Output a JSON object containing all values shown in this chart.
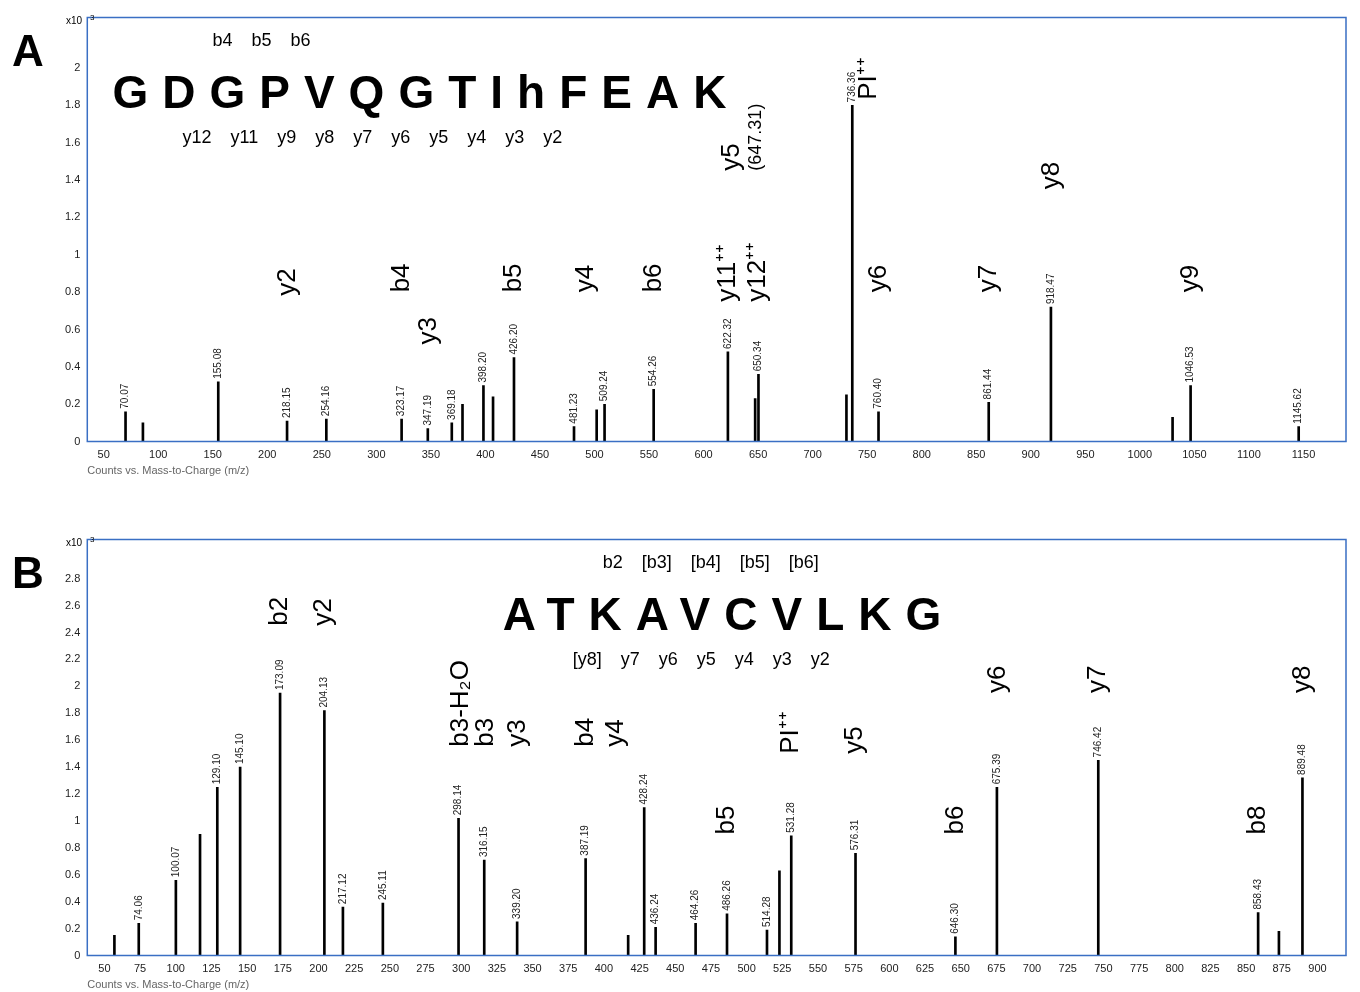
{
  "chart_data": [
    {
      "type": "bar",
      "title": "A",
      "xlabel": "Counts vs. Mass-to-Charge (m/z)",
      "ylabel": "x10$^{3}$",
      "xlim": [
        35,
        1189
      ],
      "xticks": [
        50,
        100,
        150,
        200,
        250,
        300,
        350,
        400,
        450,
        500,
        550,
        600,
        650,
        700,
        750,
        800,
        850,
        900,
        950,
        1000,
        1050,
        1100,
        1150
      ],
      "ylim": [
        0,
        2.27
      ],
      "yticks": [
        0,
        0.2,
        0.4,
        0.6,
        0.8,
        1,
        1.2,
        1.4,
        1.6,
        1.8,
        2
      ],
      "x": [
        70.07,
        86,
        155.08,
        218.15,
        254.16,
        323.17,
        347.19,
        369.18,
        379,
        398.2,
        407,
        426.2,
        481.23,
        502,
        509.24,
        554.26,
        622.32,
        647.31,
        650.34,
        731,
        736.36,
        760.4,
        861.44,
        918.47,
        1030,
        1046.53,
        1145.62
      ],
      "series": [
        {
          "color": "#000000",
          "values": [
            0.16,
            0.1,
            0.32,
            0.11,
            0.12,
            0.12,
            0.07,
            0.1,
            0.2,
            0.3,
            0.24,
            0.45,
            0.08,
            0.17,
            0.2,
            0.28,
            0.48,
            0.23,
            0.36,
            0.25,
            1.8,
            0.16,
            0.21,
            0.72,
            0.13,
            0.3,
            0.08
          ]
        }
      ],
      "annotations": [
        "b4 b5 b6",
        "GDGPVQGTIhFEAK",
        "y12 y11 y9 y8 y7 y6 y5 y4 y3 y2",
        "y2",
        "b4",
        "y3",
        "b5",
        "y4",
        "b6",
        "y11⁺⁺",
        "y12⁺⁺",
        "y5",
        "(647.31)",
        "PI⁺⁺",
        "y6",
        "y7",
        "y8",
        "y9",
        {
          "text": "70.07",
          "x": 70.07,
          "y": 0.16
        },
        {
          "text": "155.08",
          "x": 155.08,
          "y": 0.32
        },
        {
          "text": "218.15",
          "x": 218.15,
          "y": 0.11
        },
        {
          "text": "254.16",
          "x": 254.16,
          "y": 0.12
        },
        {
          "text": "323.17",
          "x": 323.17,
          "y": 0.12
        },
        {
          "text": "347.19",
          "x": 347.19,
          "y": 0.07
        },
        {
          "text": "369.18",
          "x": 369.18,
          "y": 0.1
        },
        {
          "text": "398.20",
          "x": 398.2,
          "y": 0.3
        },
        {
          "text": "426.20",
          "x": 426.2,
          "y": 0.45
        },
        {
          "text": "481.23",
          "x": 481.23,
          "y": 0.08
        },
        {
          "text": "509.24",
          "x": 509.24,
          "y": 0.2
        },
        {
          "text": "554.26",
          "x": 554.26,
          "y": 0.28
        },
        {
          "text": "622.32",
          "x": 622.32,
          "y": 0.48
        },
        {
          "text": "650.34",
          "x": 650.34,
          "y": 0.36
        },
        {
          "text": "736.36",
          "x": 736.36,
          "y": 1.8
        },
        {
          "text": "760.40",
          "x": 760.4,
          "y": 0.16
        },
        {
          "text": "861.44",
          "x": 861.44,
          "y": 0.21
        },
        {
          "text": "918.47",
          "x": 918.47,
          "y": 0.72
        },
        {
          "text": "1046.53",
          "x": 1046.53,
          "y": 0.3
        },
        {
          "text": "1145.62",
          "x": 1145.62,
          "y": 0.08
        }
      ]
    },
    {
      "type": "bar",
      "title": "B",
      "xlabel": "Counts vs. Mass-to-Charge (m/z)",
      "ylabel": "x10$^{3}$",
      "xlim": [
        38,
        920
      ],
      "xticks": [
        50,
        75,
        100,
        125,
        150,
        175,
        200,
        225,
        250,
        275,
        300,
        325,
        350,
        375,
        400,
        425,
        450,
        475,
        500,
        525,
        550,
        575,
        600,
        625,
        650,
        675,
        700,
        725,
        750,
        775,
        800,
        825,
        850,
        875,
        900
      ],
      "ylim": [
        0,
        3.09
      ],
      "yticks": [
        0,
        0.2,
        0.4,
        0.6,
        0.8,
        1,
        1.2,
        1.4,
        1.6,
        1.8,
        2,
        2.2,
        2.4,
        2.6,
        2.8
      ],
      "x": [
        57,
        74.06,
        100.07,
        117,
        129.1,
        145.1,
        173.09,
        204.13,
        217.12,
        245.11,
        298.14,
        316.15,
        339.2,
        387.19,
        417,
        428.24,
        436.24,
        464.26,
        486.26,
        514.28,
        523,
        531.28,
        576.31,
        646.3,
        675.39,
        746.42,
        858.43,
        873,
        889.48
      ],
      "series": [
        {
          "color": "#000000",
          "values": [
            0.15,
            0.24,
            0.56,
            0.9,
            1.25,
            1.4,
            1.95,
            1.82,
            0.36,
            0.39,
            1.02,
            0.71,
            0.25,
            0.72,
            0.15,
            1.1,
            0.21,
            0.24,
            0.31,
            0.19,
            0.63,
            0.89,
            0.76,
            0.14,
            1.25,
            1.45,
            0.32,
            0.18,
            1.32
          ]
        }
      ],
      "annotations": [
        "b2 [b3] [b4] [b5] [b6]",
        "ATKAVCVLKG",
        "[y8] y7 y6 y5 y4 y3 y2",
        "b2",
        "y2",
        "b3-H₂O",
        "b3",
        "y3",
        "b4",
        "y4",
        "b5",
        "PI⁺⁺",
        "y5",
        "b6",
        "y6",
        "y7",
        "b8",
        "y8",
        {
          "text": "74.06",
          "x": 74.06,
          "y": 0.24
        },
        {
          "text": "100.07",
          "x": 100.07,
          "y": 0.56
        },
        {
          "text": "129.10",
          "x": 129.1,
          "y": 1.25
        },
        {
          "text": "145.10",
          "x": 145.1,
          "y": 1.4
        },
        {
          "text": "173.09",
          "x": 173.09,
          "y": 1.95
        },
        {
          "text": "204.13",
          "x": 204.13,
          "y": 1.82
        },
        {
          "text": "217.12",
          "x": 217.12,
          "y": 0.36
        },
        {
          "text": "245.11",
          "x": 245.11,
          "y": 0.39
        },
        {
          "text": "298.14",
          "x": 298.14,
          "y": 1.02
        },
        {
          "text": "316.15",
          "x": 316.15,
          "y": 0.71
        },
        {
          "text": "339.20",
          "x": 339.2,
          "y": 0.25
        },
        {
          "text": "387.19",
          "x": 387.19,
          "y": 0.72
        },
        {
          "text": "428.24",
          "x": 428.24,
          "y": 1.1
        },
        {
          "text": "436.24",
          "x": 436.24,
          "y": 0.21
        },
        {
          "text": "464.26",
          "x": 464.26,
          "y": 0.24
        },
        {
          "text": "486.26",
          "x": 486.26,
          "y": 0.31
        },
        {
          "text": "514.28",
          "x": 514.28,
          "y": 0.19
        },
        {
          "text": "531.28",
          "x": 531.28,
          "y": 0.89
        },
        {
          "text": "576.31",
          "x": 576.31,
          "y": 0.76
        },
        {
          "text": "646.30",
          "x": 646.3,
          "y": 0.14
        },
        {
          "text": "675.39",
          "x": 675.39,
          "y": 1.25
        },
        {
          "text": "746.42",
          "x": 746.42,
          "y": 1.45
        },
        {
          "text": "858.43",
          "x": 858.43,
          "y": 0.32
        },
        {
          "text": "889.48",
          "x": 889.48,
          "y": 1.32
        }
      ]
    }
  ]
}
